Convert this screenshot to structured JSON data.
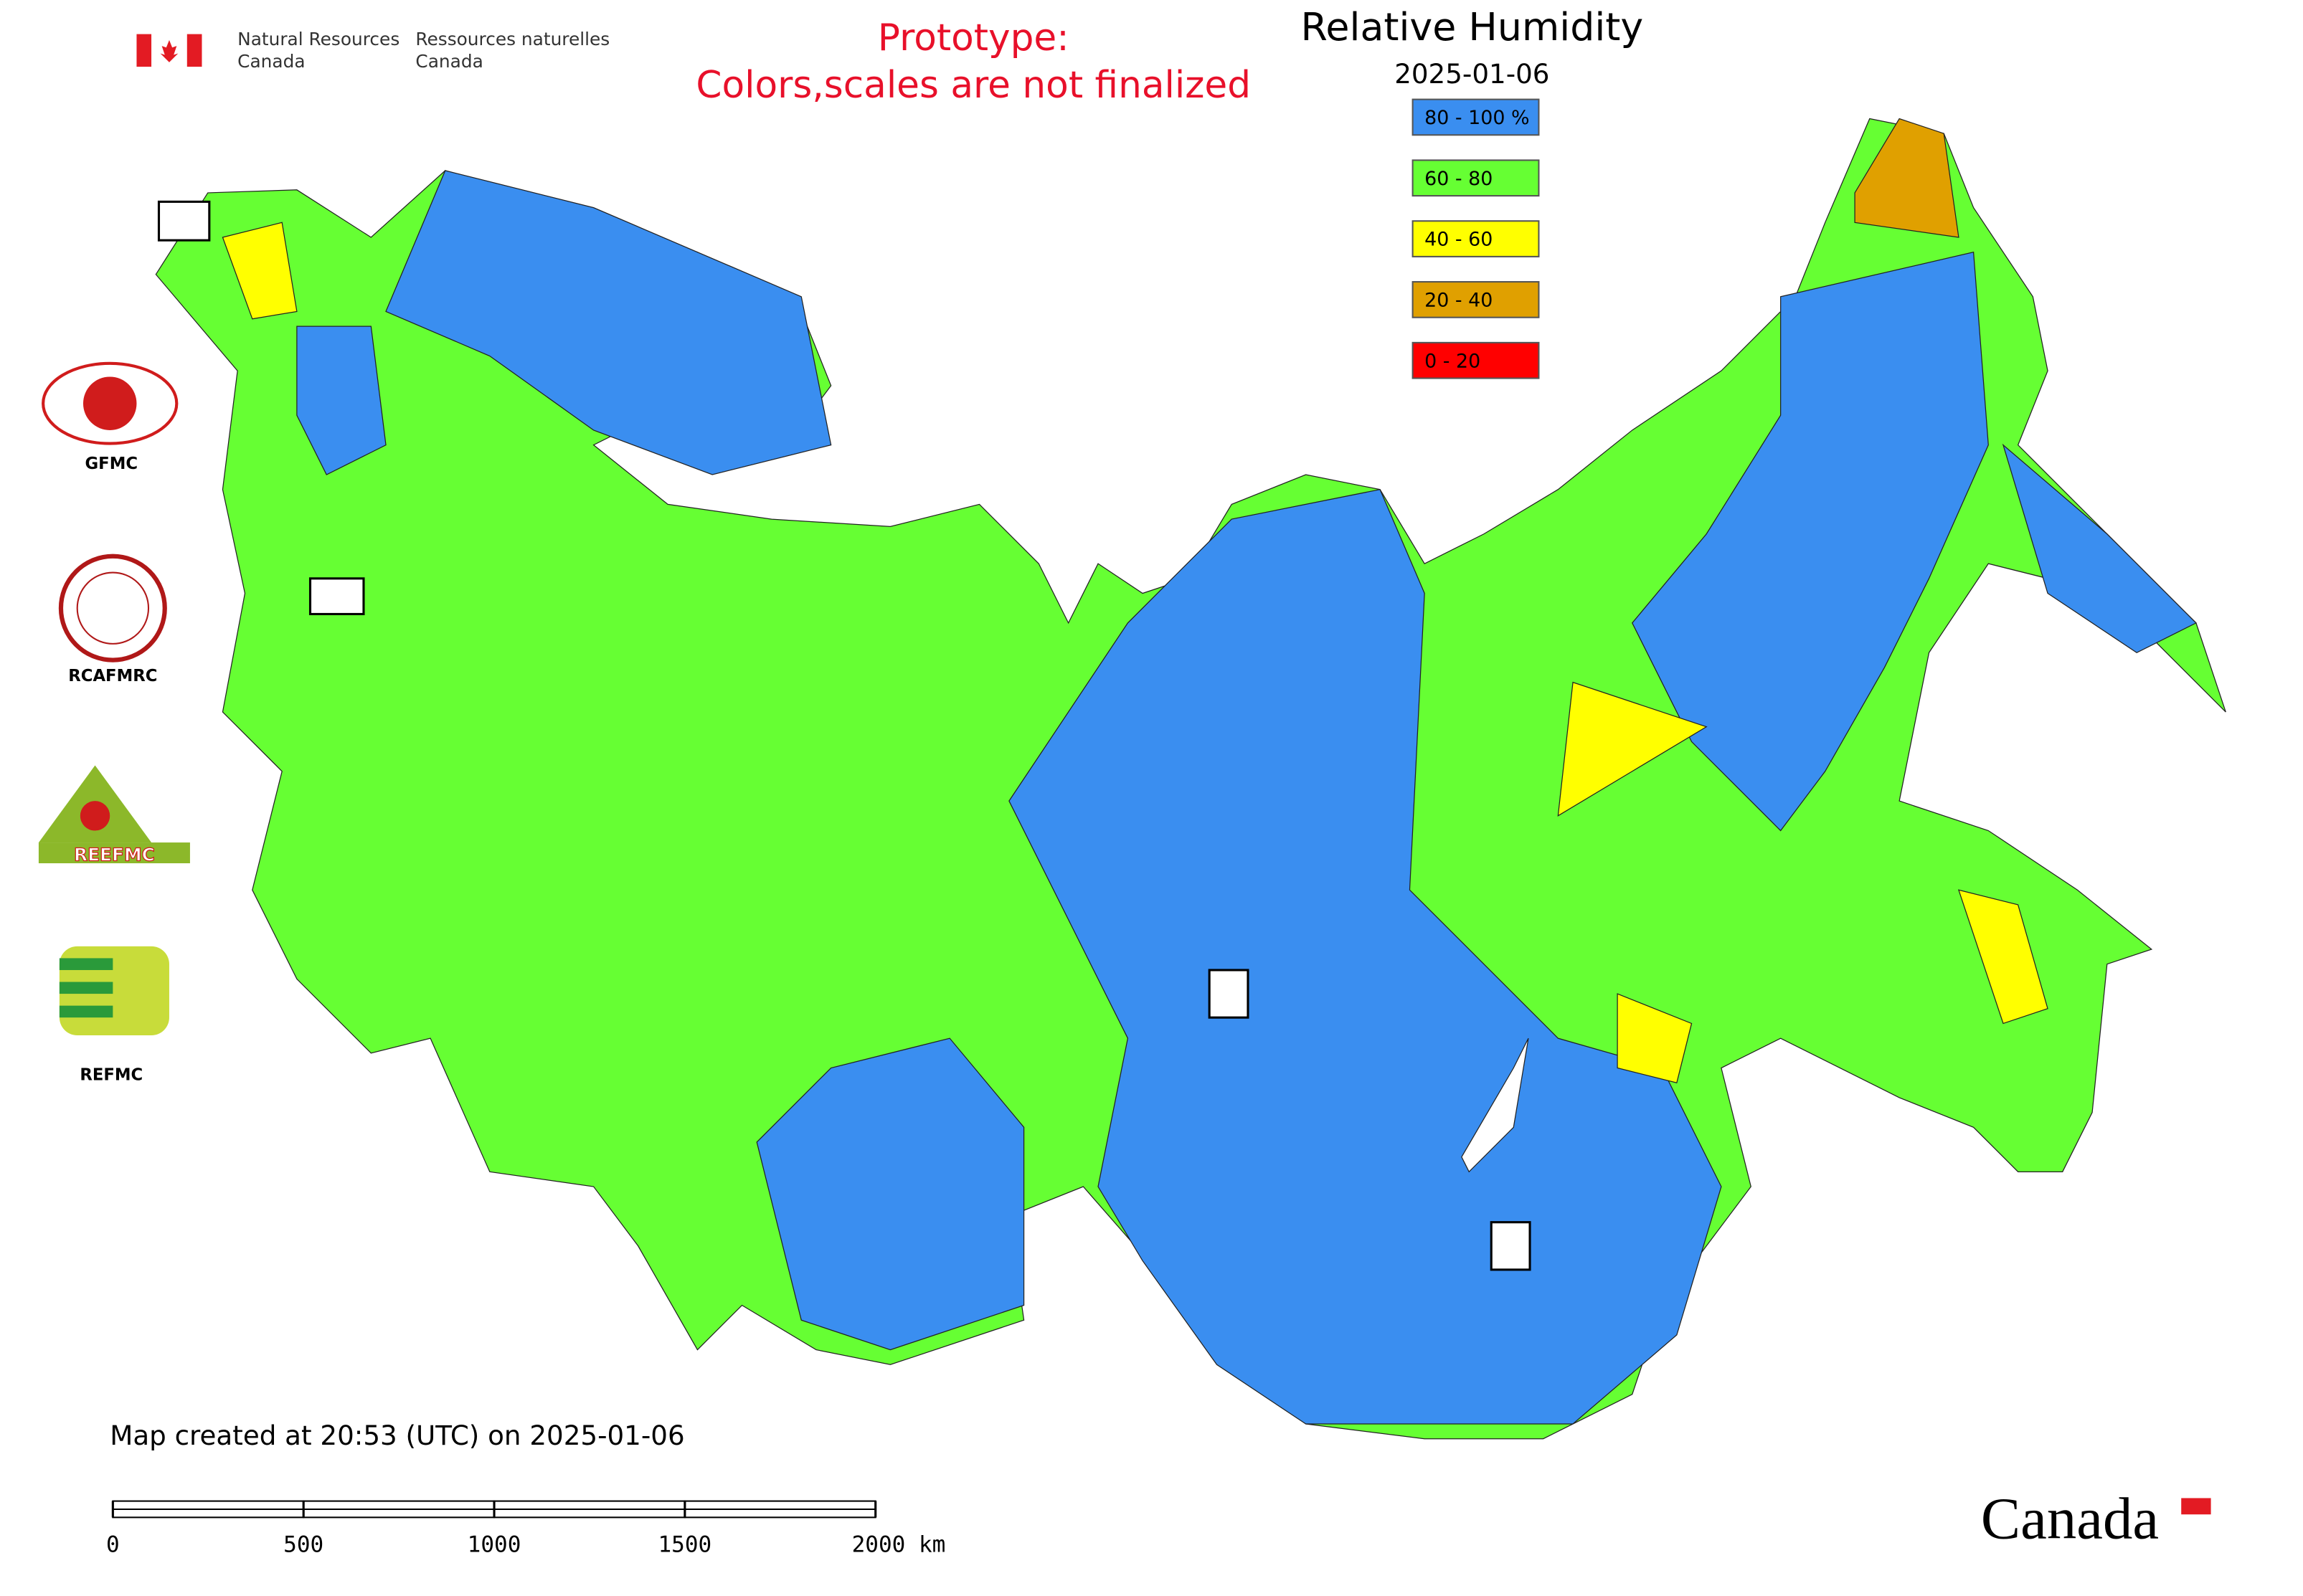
{
  "header": {
    "agency_en": [
      "Natural Resources",
      "Canada"
    ],
    "agency_fr": [
      "Ressources naturelles",
      "Canada"
    ]
  },
  "notice": [
    "Prototype:",
    "Colors,scales are not finalized"
  ],
  "title": "Relative Humidity",
  "date": "2025-01-06",
  "legend": [
    {
      "label": "80 - 100 %",
      "color": "#3a8ef0"
    },
    {
      "label": "60 - 80",
      "color": "#66ff33"
    },
    {
      "label": "40 - 60",
      "color": "#ffff00"
    },
    {
      "label": "20 - 40",
      "color": "#e0a000"
    },
    {
      "label": "0 - 20",
      "color": "#ff0000"
    }
  ],
  "partners": [
    "GFMC",
    "RCAFMRC",
    "REEFMC",
    "REFMC"
  ],
  "footer": "Map created at 20:53 (UTC) on 2025-01-06",
  "scale_bar": {
    "xlim": [
      0,
      2000
    ],
    "ticks": [
      0,
      500,
      1000,
      1500,
      {
        "value": 2000,
        "label": "2000 km"
      }
    ]
  },
  "wordmark": "Canada"
}
